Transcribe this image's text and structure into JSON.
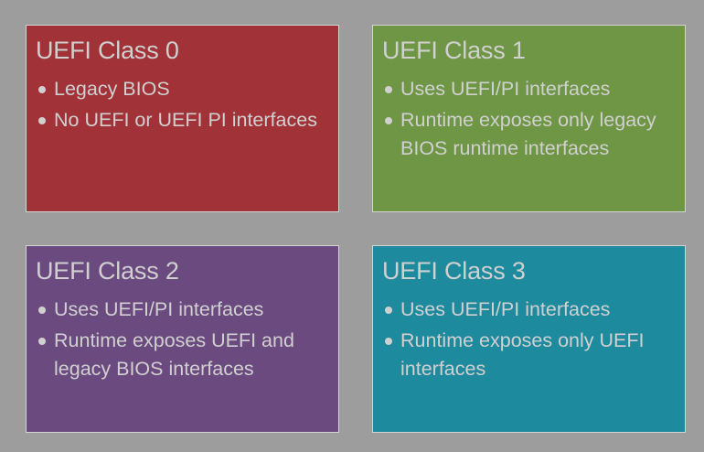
{
  "boxes": [
    {
      "title": "UEFI Class 0",
      "color": "#a03238",
      "bullets": [
        "Legacy BIOS",
        "No UEFI or UEFI PI interfaces"
      ]
    },
    {
      "title": "UEFI Class 1",
      "color": "#6f9644",
      "bullets": [
        "Uses UEFI/PI interfaces",
        "Runtime exposes only legacy BIOS runtime interfaces"
      ]
    },
    {
      "title": "UEFI Class 2",
      "color": "#6b4a80",
      "bullets": [
        "Uses UEFI/PI interfaces",
        "Runtime exposes UEFI and legacy BIOS interfaces"
      ]
    },
    {
      "title": "UEFI Class 3",
      "color": "#1e8a9d",
      "bullets": [
        "Uses UEFI/PI interfaces",
        "Runtime exposes only UEFI interfaces"
      ]
    }
  ]
}
